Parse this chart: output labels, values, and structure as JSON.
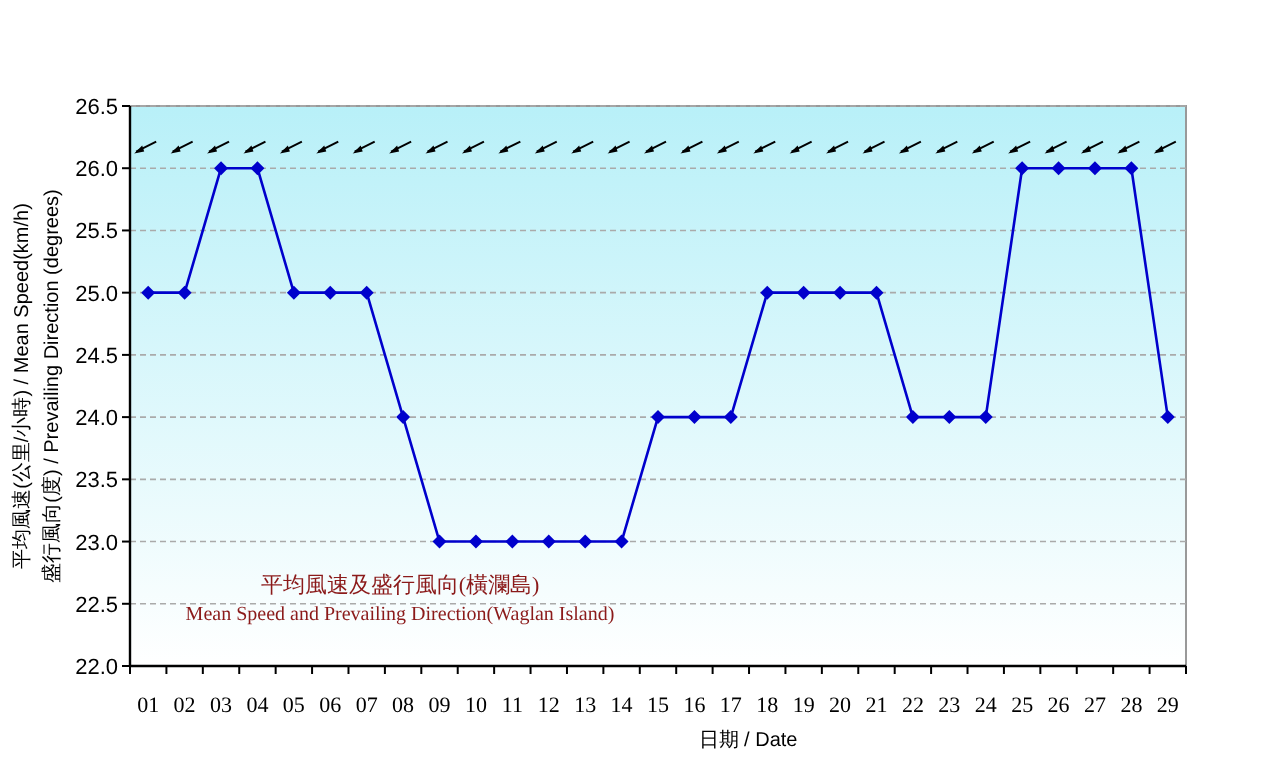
{
  "chart_data": {
    "type": "line",
    "categories": [
      "01",
      "02",
      "03",
      "04",
      "05",
      "06",
      "07",
      "08",
      "09",
      "10",
      "11",
      "12",
      "13",
      "14",
      "15",
      "16",
      "17",
      "18",
      "19",
      "20",
      "21",
      "22",
      "23",
      "24",
      "25",
      "26",
      "27",
      "28",
      "29"
    ],
    "series": [
      {
        "color": "#0000cc",
        "values": [
          25,
          25,
          26,
          26,
          25,
          25,
          25,
          24,
          23,
          23,
          23,
          23,
          23,
          23,
          24,
          24,
          24,
          25,
          25,
          25,
          25,
          24,
          24,
          24,
          26,
          26,
          26,
          26,
          24
        ]
      }
    ],
    "ylim": [
      22.0,
      26.5
    ],
    "yticks": [
      {
        "value": 22,
        "label": "22.0"
      },
      {
        "value": 22.5,
        "label": "22.5"
      },
      {
        "value": 23,
        "label": "23.0"
      },
      {
        "value": 23.5,
        "label": "23.5"
      },
      {
        "value": 24,
        "label": "24.0"
      },
      {
        "value": 24.5,
        "label": "24.5"
      },
      {
        "value": 25,
        "label": "25.0"
      },
      {
        "value": 25.5,
        "label": "25.5"
      },
      {
        "value": 26,
        "label": "26.0"
      },
      {
        "value": 26.5,
        "label": "26.5"
      }
    ],
    "xlabel": "日期 / Date",
    "ylabel": "平均風速(公里/小時) / Mean Speed(km/h)\n盛行風向(度) / Prevailing Direction (degrees)",
    "annotations": [
      "平均風速及盛行風向(橫瀾島)",
      "Mean Speed and Prevailing Direction(Waglan Island)"
    ],
    "grid": "y",
    "marker": "diamond",
    "line_style": "solid"
  }
}
